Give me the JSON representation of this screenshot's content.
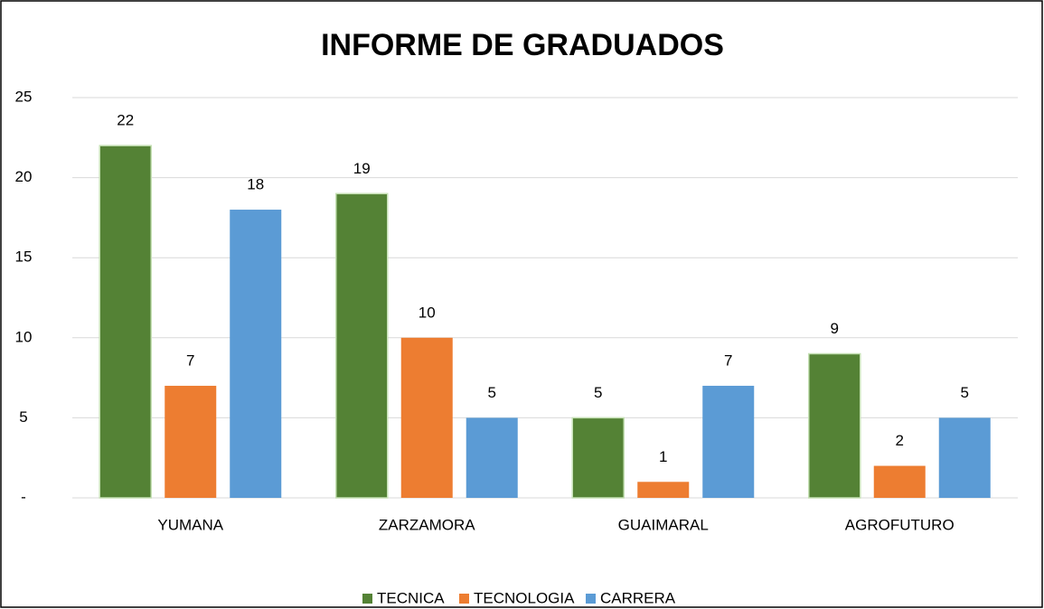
{
  "chart_data": {
    "type": "bar",
    "title": "INFORME DE GRADUADOS",
    "categories": [
      "YUMANA",
      "ZARZAMORA",
      "GUAIMARAL",
      "AGROFUTURO"
    ],
    "series": [
      {
        "name": "TECNICA",
        "color": "#548235",
        "values": [
          22,
          19,
          5,
          9
        ]
      },
      {
        "name": "TECNOLOGIA",
        "color": "#ed7d31",
        "values": [
          7,
          10,
          1,
          2
        ]
      },
      {
        "name": "CARRERA",
        "color": "#5b9bd5",
        "values": [
          18,
          5,
          7,
          5
        ]
      }
    ],
    "ylim": [
      0,
      25
    ],
    "yticks": [
      {
        "value": 0,
        "label": "-"
      },
      5,
      10,
      15,
      20,
      25
    ],
    "grid": true,
    "legend": "bottom"
  }
}
